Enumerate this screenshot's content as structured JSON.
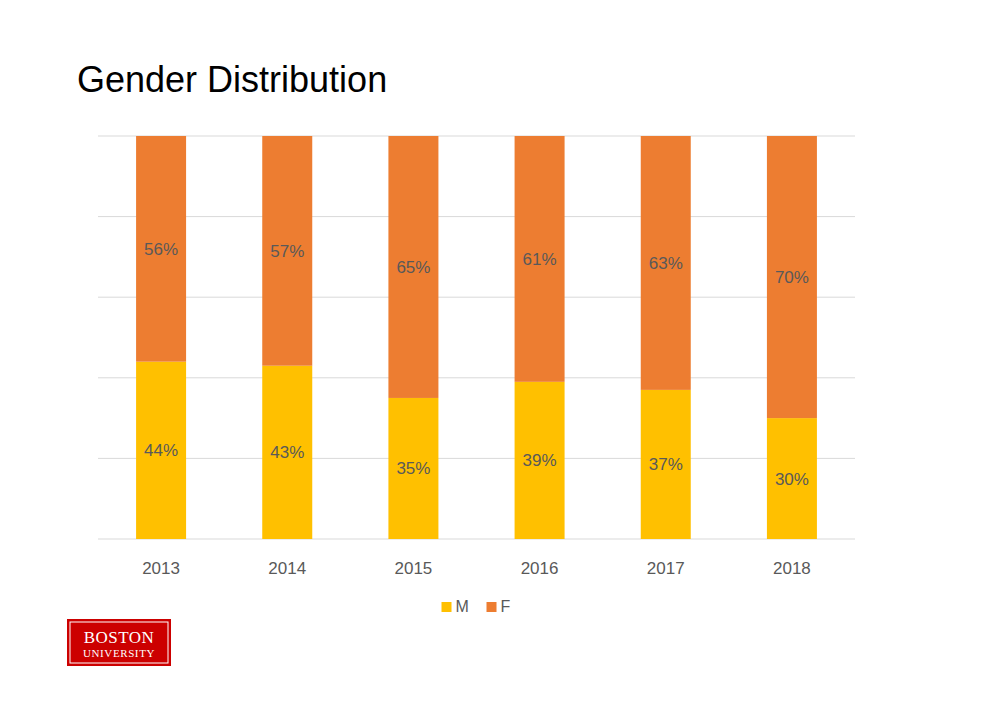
{
  "chart_data": {
    "type": "bar",
    "title": "Gender Distribution",
    "categories": [
      "2013",
      "2014",
      "2015",
      "2016",
      "2017",
      "2018"
    ],
    "series": [
      {
        "name": "M",
        "color": "#ffc000",
        "values": [
          44,
          43,
          35,
          39,
          37,
          30
        ],
        "value_labels": [
          "44%",
          "43%",
          "35%",
          "39%",
          "37%",
          "30%"
        ]
      },
      {
        "name": "F",
        "color": "#ed7d31",
        "values": [
          56,
          57,
          65,
          61,
          63,
          70
        ],
        "value_labels": [
          "56%",
          "57%",
          "65%",
          "61%",
          "63%",
          "70%"
        ]
      }
    ],
    "ylim": [
      0,
      100
    ],
    "yticks": [
      0,
      20,
      40,
      60,
      80,
      100
    ],
    "grid": true,
    "stacked": true,
    "data_labels": true,
    "tick_labels": "x",
    "legend": "bottom",
    "annotations": [
      "BOSTON",
      "UNIVERSITY"
    ]
  }
}
